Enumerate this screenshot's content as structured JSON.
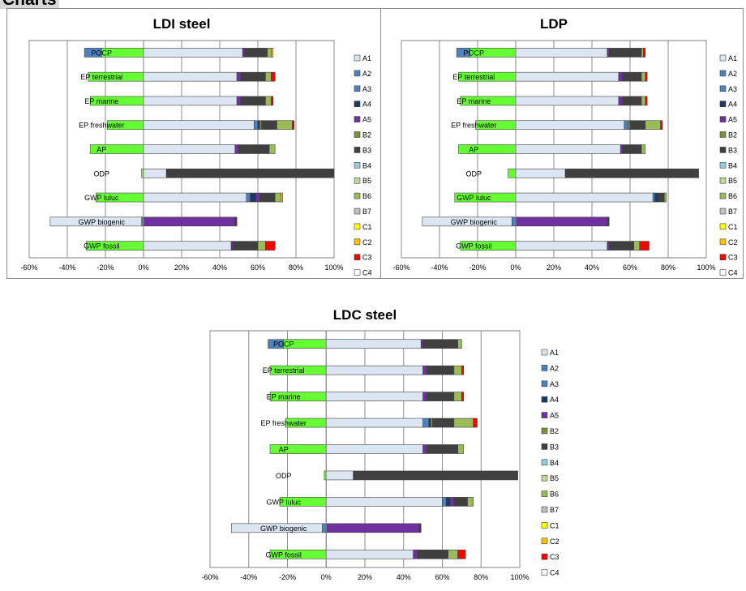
{
  "header": {
    "title": "Charts"
  },
  "legend": {
    "items": [
      "A1",
      "A2",
      "A3",
      "A4",
      "A5",
      "B2",
      "B3",
      "B4",
      "B5",
      "B6",
      "B7",
      "C1",
      "C2",
      "C3",
      "C4"
    ],
    "colors": {
      "A1": "#dce6f2",
      "A2": "#4f81bd",
      "A3": "#4f81bd",
      "A4": "#1f3864",
      "A5": "#7030a0",
      "B2": "#77933c",
      "B3": "#404040",
      "B4": "#93cddd",
      "B5": "#c3d69b",
      "B6": "#9bbb59",
      "B7": "#bfbfbf",
      "C1": "#ffff00",
      "C2": "#ffc000",
      "C3": "#ff0000",
      "C4": "#ffffff",
      "credit": "#66ff33"
    }
  },
  "chart_data": [
    {
      "type": "bar",
      "orientation": "horizontal",
      "stacked": true,
      "title": "LDI steel",
      "categories": [
        "POCP",
        "EP terrestrial",
        "EP marine",
        "EP freshwater",
        "AP",
        "ODP",
        "GWP luluc",
        "GWP biogenic",
        "GWP fossil"
      ],
      "xlim": [
        -0.6,
        1.0
      ],
      "xticks": [
        "-60%",
        "-40%",
        "-20%",
        "0%",
        "20%",
        "40%",
        "60%",
        "80%",
        "100%"
      ],
      "grid": true,
      "legend_position": "right",
      "series": [
        {
          "name": "A1",
          "values": [
            0.52,
            0.49,
            0.49,
            0.58,
            0.48,
            0.12,
            0.54,
            0.0,
            0.46
          ]
        },
        {
          "name": "A2",
          "values": [
            0.0,
            0.0,
            0.0,
            0.0,
            0.0,
            0.0,
            0.0,
            0.0,
            0.0
          ]
        },
        {
          "name": "A3",
          "values": [
            0.0,
            0.0,
            0.0,
            0.02,
            0.0,
            0.0,
            0.02,
            0.0,
            0.0
          ]
        },
        {
          "name": "A4",
          "values": [
            0.0,
            0.0,
            0.0,
            0.01,
            0.0,
            0.0,
            0.03,
            0.0,
            0.0
          ]
        },
        {
          "name": "A5",
          "values": [
            0.01,
            0.02,
            0.02,
            0.0,
            0.02,
            0.0,
            0.02,
            0.48,
            0.01
          ]
        },
        {
          "name": "B2",
          "values": [
            0.0,
            0.0,
            0.0,
            0.01,
            0.0,
            0.0,
            0.0,
            0.0,
            0.0
          ]
        },
        {
          "name": "B3",
          "values": [
            0.12,
            0.13,
            0.13,
            0.08,
            0.16,
            0.88,
            0.08,
            0.01,
            0.13
          ]
        },
        {
          "name": "B4",
          "values": [
            0.0,
            0.0,
            0.0,
            0.0,
            0.0,
            0.0,
            0.0,
            0.0,
            0.0
          ]
        },
        {
          "name": "B5",
          "values": [
            0.0,
            0.0,
            0.0,
            0.0,
            0.0,
            0.0,
            0.0,
            0.0,
            0.0
          ]
        },
        {
          "name": "B6",
          "values": [
            0.02,
            0.03,
            0.03,
            0.08,
            0.03,
            0.0,
            0.03,
            0.0,
            0.04
          ]
        },
        {
          "name": "B7",
          "values": [
            0.0,
            0.0,
            0.0,
            0.0,
            0.0,
            0.0,
            0.0,
            0.0,
            0.0
          ]
        },
        {
          "name": "C1",
          "values": [
            0.0,
            0.0,
            0.0,
            0.0,
            0.0,
            0.0,
            0.0,
            0.0,
            0.0
          ]
        },
        {
          "name": "C2",
          "values": [
            0.01,
            0.0,
            0.0,
            0.0,
            0.0,
            0.0,
            0.01,
            0.0,
            0.0
          ]
        },
        {
          "name": "C3",
          "values": [
            0.0,
            0.02,
            0.01,
            0.01,
            0.0,
            0.0,
            0.0,
            0.0,
            0.05
          ]
        },
        {
          "name": "C4",
          "values": [
            0.0,
            0.0,
            0.0,
            0.0,
            0.0,
            0.0,
            0.0,
            0.0,
            0.0
          ]
        }
      ],
      "negatives": {
        "A1": [
          0.0,
          0.0,
          0.0,
          0.0,
          0.0,
          0.0,
          0.0,
          -0.48,
          0.0
        ],
        "A3": [
          -0.09,
          0.0,
          0.0,
          0.0,
          0.0,
          0.0,
          0.0,
          -0.01,
          0.0
        ],
        "credit": [
          -0.22,
          -0.29,
          -0.28,
          -0.19,
          -0.28,
          -0.01,
          -0.25,
          0.0,
          -0.3
        ]
      }
    },
    {
      "type": "bar",
      "orientation": "horizontal",
      "stacked": true,
      "title": "LDP",
      "categories": [
        "POCP",
        "EP terrestrial",
        "EP marine",
        "EP freshwater",
        "AP",
        "ODP",
        "GWP luluc",
        "GWP biogenic",
        "GWP fossil"
      ],
      "xlim": [
        -0.6,
        1.0
      ],
      "xticks": [
        "-60%",
        "-40%",
        "-20%",
        "0%",
        "20%",
        "40%",
        "60%",
        "80%",
        "100%"
      ],
      "grid": true,
      "legend_position": "right",
      "series": [
        {
          "name": "A1",
          "values": [
            0.48,
            0.54,
            0.54,
            0.57,
            0.55,
            0.26,
            0.72,
            0.0,
            0.48
          ]
        },
        {
          "name": "A2",
          "values": [
            0.0,
            0.0,
            0.0,
            0.0,
            0.0,
            0.0,
            0.0,
            0.0,
            0.0
          ]
        },
        {
          "name": "A3",
          "values": [
            0.0,
            0.0,
            0.0,
            0.02,
            0.0,
            0.0,
            0.01,
            0.0,
            0.0
          ]
        },
        {
          "name": "A4",
          "values": [
            0.0,
            0.0,
            0.0,
            0.0,
            0.0,
            0.0,
            0.02,
            0.0,
            0.0
          ]
        },
        {
          "name": "A5",
          "values": [
            0.01,
            0.02,
            0.02,
            0.0,
            0.01,
            0.0,
            0.0,
            0.48,
            0.01
          ]
        },
        {
          "name": "B2",
          "values": [
            0.0,
            0.0,
            0.0,
            0.01,
            0.0,
            0.0,
            0.0,
            0.0,
            0.0
          ]
        },
        {
          "name": "B3",
          "values": [
            0.17,
            0.1,
            0.1,
            0.08,
            0.1,
            0.7,
            0.03,
            0.01,
            0.13
          ]
        },
        {
          "name": "B4",
          "values": [
            0.0,
            0.0,
            0.0,
            0.0,
            0.0,
            0.0,
            0.0,
            0.0,
            0.0
          ]
        },
        {
          "name": "B5",
          "values": [
            0.0,
            0.0,
            0.0,
            0.0,
            0.0,
            0.0,
            0.0,
            0.0,
            0.0
          ]
        },
        {
          "name": "B6",
          "values": [
            0.01,
            0.02,
            0.02,
            0.08,
            0.02,
            0.0,
            0.01,
            0.0,
            0.03
          ]
        },
        {
          "name": "B7",
          "values": [
            0.0,
            0.0,
            0.0,
            0.0,
            0.0,
            0.0,
            0.0,
            0.0,
            0.0
          ]
        },
        {
          "name": "C1",
          "values": [
            0.0,
            0.0,
            0.0,
            0.0,
            0.0,
            0.0,
            0.0,
            0.0,
            0.0
          ]
        },
        {
          "name": "C2",
          "values": [
            0.0,
            0.0,
            0.0,
            0.0,
            0.0,
            0.0,
            0.0,
            0.0,
            0.0
          ]
        },
        {
          "name": "C3",
          "values": [
            0.01,
            0.01,
            0.01,
            0.01,
            0.0,
            0.0,
            0.0,
            0.0,
            0.05
          ]
        },
        {
          "name": "C4",
          "values": [
            0.0,
            0.0,
            0.0,
            0.0,
            0.0,
            0.0,
            0.0,
            0.0,
            0.0
          ]
        }
      ],
      "negatives": {
        "A1": [
          0.0,
          0.0,
          0.0,
          0.0,
          0.0,
          0.0,
          0.0,
          -0.47,
          0.0
        ],
        "A3": [
          -0.07,
          0.0,
          0.0,
          0.0,
          0.0,
          0.0,
          0.0,
          -0.02,
          0.0
        ],
        "credit": [
          -0.24,
          -0.3,
          -0.29,
          -0.21,
          -0.3,
          -0.04,
          -0.32,
          0.0,
          -0.29
        ]
      }
    },
    {
      "type": "bar",
      "orientation": "horizontal",
      "stacked": true,
      "title": "LDC steel",
      "categories": [
        "POCP",
        "EP terrestrial",
        "EP marine",
        "EP freshwater",
        "AP",
        "ODP",
        "GWP luluc",
        "GWP biogenic",
        "GWP fossil"
      ],
      "xlim": [
        -0.6,
        1.0
      ],
      "xticks": [
        "-60%",
        "-40%",
        "-20%",
        "0%",
        "20%",
        "40%",
        "60%",
        "80%",
        "100%"
      ],
      "grid": true,
      "legend_position": "right",
      "series": [
        {
          "name": "A1",
          "values": [
            0.49,
            0.5,
            0.5,
            0.5,
            0.5,
            0.14,
            0.6,
            0.0,
            0.45
          ]
        },
        {
          "name": "A2",
          "values": [
            0.0,
            0.0,
            0.0,
            0.0,
            0.0,
            0.0,
            0.0,
            0.0,
            0.0
          ]
        },
        {
          "name": "A3",
          "values": [
            0.0,
            0.0,
            0.0,
            0.03,
            0.0,
            0.0,
            0.02,
            0.0,
            0.0
          ]
        },
        {
          "name": "A4",
          "values": [
            0.0,
            0.0,
            0.0,
            0.01,
            0.0,
            0.0,
            0.02,
            0.0,
            0.0
          ]
        },
        {
          "name": "A5",
          "values": [
            0.01,
            0.02,
            0.02,
            0.0,
            0.02,
            0.0,
            0.02,
            0.48,
            0.02
          ]
        },
        {
          "name": "B2",
          "values": [
            0.0,
            0.0,
            0.0,
            0.01,
            0.0,
            0.0,
            0.0,
            0.0,
            0.0
          ]
        },
        {
          "name": "B3",
          "values": [
            0.18,
            0.14,
            0.14,
            0.11,
            0.16,
            0.85,
            0.07,
            0.01,
            0.16
          ]
        },
        {
          "name": "B4",
          "values": [
            0.0,
            0.0,
            0.0,
            0.0,
            0.0,
            0.0,
            0.0,
            0.0,
            0.0
          ]
        },
        {
          "name": "B5",
          "values": [
            0.0,
            0.0,
            0.0,
            0.0,
            0.0,
            0.0,
            0.0,
            0.0,
            0.0
          ]
        },
        {
          "name": "B6",
          "values": [
            0.02,
            0.04,
            0.04,
            0.1,
            0.03,
            0.0,
            0.03,
            0.0,
            0.05
          ]
        },
        {
          "name": "B7",
          "values": [
            0.0,
            0.0,
            0.0,
            0.0,
            0.0,
            0.0,
            0.0,
            0.0,
            0.0
          ]
        },
        {
          "name": "C1",
          "values": [
            0.0,
            0.0,
            0.0,
            0.0,
            0.0,
            0.0,
            0.0,
            0.0,
            0.0
          ]
        },
        {
          "name": "C2",
          "values": [
            0.0,
            0.0,
            0.0,
            0.0,
            0.0,
            0.0,
            0.0,
            0.0,
            0.0
          ]
        },
        {
          "name": "C3",
          "values": [
            0.0,
            0.01,
            0.01,
            0.02,
            0.0,
            0.0,
            0.0,
            0.0,
            0.04
          ]
        },
        {
          "name": "C4",
          "values": [
            0.0,
            0.0,
            0.0,
            0.0,
            0.0,
            0.0,
            0.0,
            0.0,
            0.0
          ]
        }
      ],
      "negatives": {
        "A1": [
          0.0,
          0.0,
          0.0,
          0.0,
          0.0,
          0.0,
          0.0,
          -0.47,
          0.0
        ],
        "A3": [
          -0.08,
          0.0,
          0.0,
          0.0,
          0.0,
          0.0,
          0.0,
          -0.02,
          0.0
        ],
        "credit": [
          -0.22,
          -0.29,
          -0.29,
          -0.21,
          -0.29,
          -0.01,
          -0.24,
          0.0,
          -0.29
        ]
      }
    }
  ]
}
